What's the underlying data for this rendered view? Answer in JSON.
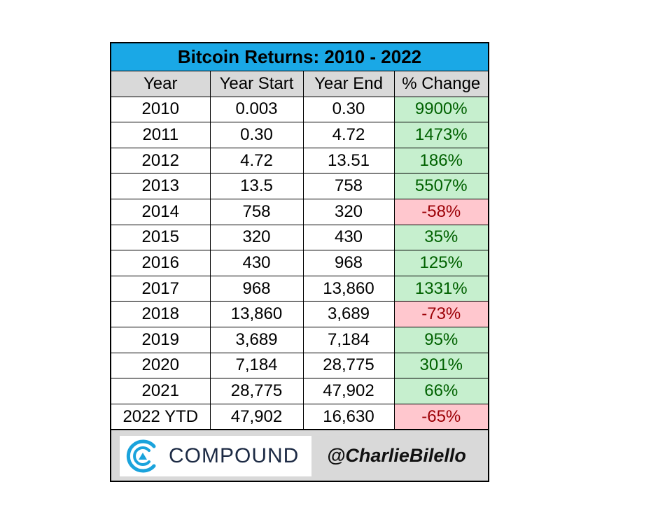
{
  "colors": {
    "title_bg": "#1aa8e6",
    "header_bg": "#d9d9d9",
    "positive_bg": "#c6efce",
    "positive_text": "#006100",
    "negative_bg": "#ffc7ce",
    "negative_text": "#9c0006",
    "brand_cyan": "#1aa3dc",
    "brand_navy": "#1c2a44"
  },
  "footer": {
    "brand_icon": "compound-logo-icon",
    "brand_name": "COMPOUND",
    "handle": "@CharlieBilello"
  },
  "chart_data": {
    "type": "table",
    "title": "Bitcoin Returns: 2010 - 2022",
    "columns": [
      "Year",
      "Year Start",
      "Year End",
      "% Change"
    ],
    "rows": [
      {
        "year": "2010",
        "start": "0.003",
        "end": "0.30",
        "change": "9900%",
        "change_value": 9900
      },
      {
        "year": "2011",
        "start": "0.30",
        "end": "4.72",
        "change": "1473%",
        "change_value": 1473
      },
      {
        "year": "2012",
        "start": "4.72",
        "end": "13.51",
        "change": "186%",
        "change_value": 186
      },
      {
        "year": "2013",
        "start": "13.5",
        "end": "758",
        "change": "5507%",
        "change_value": 5507
      },
      {
        "year": "2014",
        "start": "758",
        "end": "320",
        "change": "-58%",
        "change_value": -58
      },
      {
        "year": "2015",
        "start": "320",
        "end": "430",
        "change": "35%",
        "change_value": 35
      },
      {
        "year": "2016",
        "start": "430",
        "end": "968",
        "change": "125%",
        "change_value": 125
      },
      {
        "year": "2017",
        "start": "968",
        "end": "13,860",
        "change": "1331%",
        "change_value": 1331
      },
      {
        "year": "2018",
        "start": "13,860",
        "end": "3,689",
        "change": "-73%",
        "change_value": -73
      },
      {
        "year": "2019",
        "start": "3,689",
        "end": "7,184",
        "change": "95%",
        "change_value": 95
      },
      {
        "year": "2020",
        "start": "7,184",
        "end": "28,775",
        "change": "301%",
        "change_value": 301
      },
      {
        "year": "2021",
        "start": "28,775",
        "end": "47,902",
        "change": "66%",
        "change_value": 66
      },
      {
        "year": "2022 YTD",
        "start": "47,902",
        "end": "16,630",
        "change": "-65%",
        "change_value": -65
      }
    ]
  }
}
